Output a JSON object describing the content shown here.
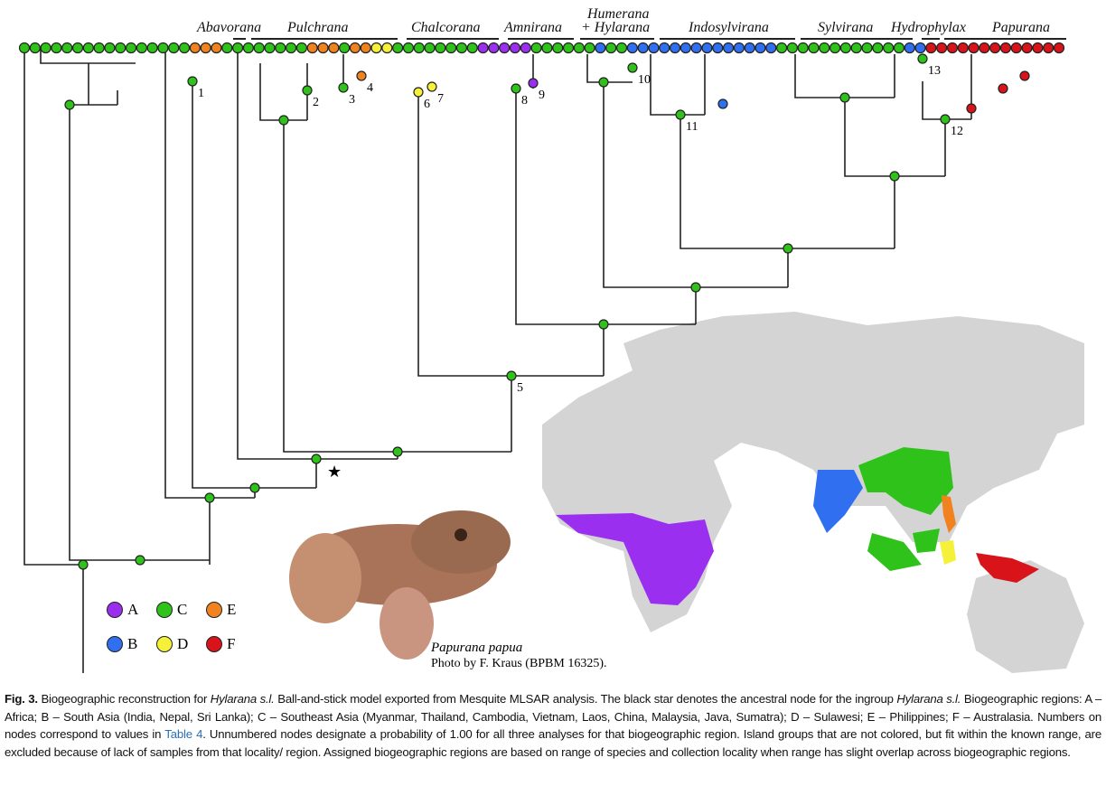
{
  "figure": {
    "clades": [
      "Abavorana",
      "Pulchrana",
      "Chalcorana",
      "Amnirana",
      "Humerana",
      "+ Hylarana",
      "Indosylvirana",
      "Sylvirana",
      "Hydrophylax",
      "Papurana"
    ],
    "tips": "CCCCCCCCCCCCCCCCEEE C CCCCCCCEEECEE DDCCCCCCC CAAAAA CCCCCCBC CBBBBBBBBBBBBBB CCCCCCCCCCC CBB FFFFFFFFFFFFF",
    "node_labels": [
      "1",
      "2",
      "3",
      "4",
      "5",
      "6",
      "7",
      "8",
      "9",
      "10",
      "11",
      "12",
      "13"
    ],
    "region_colors": {
      "A": "#9b2ff0",
      "B": "#2f6ff0",
      "C": "#2fc21a",
      "D": "#f5f03a",
      "E": "#f0821f",
      "F": "#d8141a"
    },
    "legend": [
      {
        "region": "A",
        "label": "A"
      },
      {
        "region": "C",
        "label": "C"
      },
      {
        "region": "E",
        "label": "E"
      },
      {
        "region": "B",
        "label": "B"
      },
      {
        "region": "D",
        "label": "D"
      },
      {
        "region": "F",
        "label": "F"
      }
    ],
    "photo": {
      "species": "Papurana papua",
      "credit": "Photo by F. Kraus (BPBM 16325)."
    }
  },
  "caption": {
    "label": "Fig. 3.",
    "t1": " Biogeographic reconstruction for ",
    "i1": "Hylarana s.l.",
    "t2": " Ball-and-stick model exported from Mesquite MLSAR analysis. The black star denotes the ancestral node for the ingroup ",
    "i2": "Hylarana s.l.",
    "t3": " Biogeographic regions: A – Africa; B – South Asia (India, Nepal, Sri Lanka); C – Southeast Asia (Myanmar, Thailand, Cambodia, Vietnam, Laos, China, Malaysia, Java, Sumatra); D – Sulawesi; E – Philippines; F – Australasia. Numbers on nodes correspond to values in ",
    "link": "Table 4",
    "t4": ". Unnumbered nodes designate a probability of 1.00 for all three analyses for that biogeographic region. Island groups that are not colored, but fit within the known range, are excluded because of lack of samples from that locality/ region. Assigned biogeographic regions are based on range of species and collection locality when range has slight overlap across biogeographic regions."
  }
}
